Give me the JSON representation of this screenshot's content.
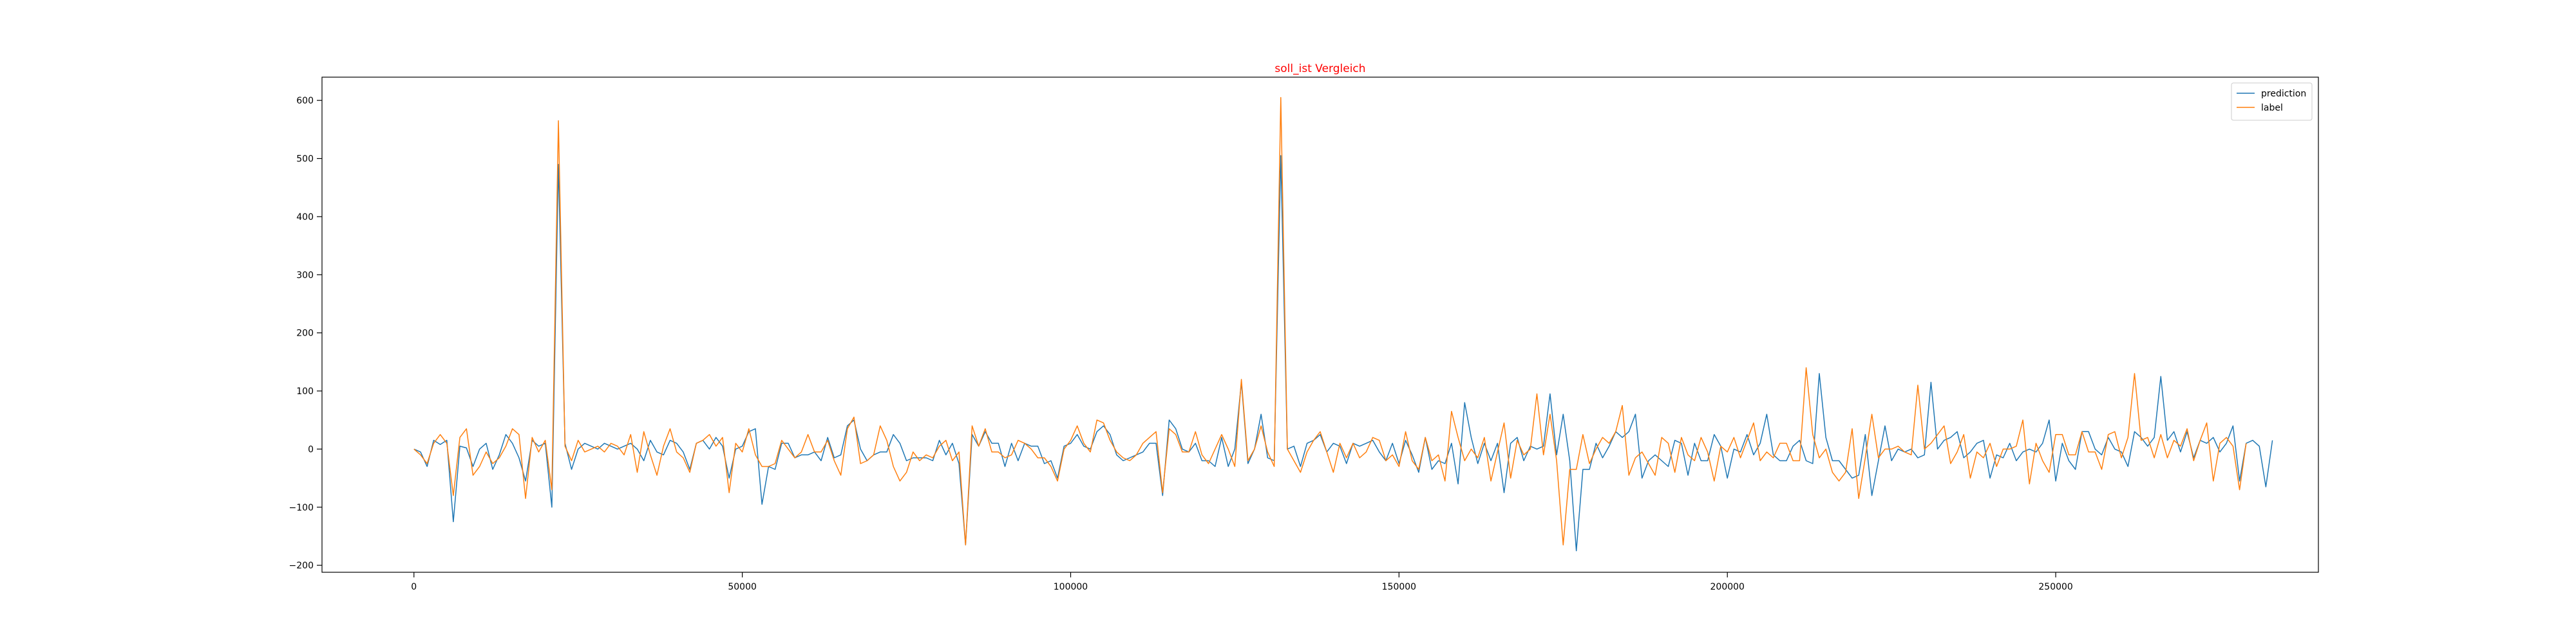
{
  "chart_data": {
    "type": "line",
    "title": "soll_ist Vergleich",
    "title_color": "#ff0000",
    "xlabel": "",
    "ylabel": "",
    "xlim": [
      -14000,
      290000
    ],
    "ylim": [
      -212,
      640
    ],
    "x_ticks": [
      0,
      50000,
      100000,
      150000,
      200000,
      250000
    ],
    "y_ticks": [
      -200,
      -100,
      0,
      100,
      200,
      300,
      400,
      500,
      600
    ],
    "grid": false,
    "legend_position": "top-right",
    "x_step": 1000,
    "series": [
      {
        "name": "prediction",
        "color": "#1f77b4",
        "values": [
          0,
          -5,
          -30,
          15,
          8,
          15,
          -125,
          5,
          2,
          -30,
          0,
          10,
          -35,
          -10,
          25,
          10,
          -15,
          -55,
          15,
          5,
          10,
          -100,
          490,
          10,
          -35,
          0,
          10,
          5,
          0,
          10,
          5,
          0,
          5,
          10,
          0,
          -20,
          15,
          -5,
          -10,
          15,
          10,
          -5,
          -35,
          10,
          15,
          0,
          20,
          5,
          -50,
          0,
          5,
          30,
          35,
          -95,
          -30,
          -35,
          10,
          10,
          -15,
          -10,
          -10,
          -5,
          -20,
          20,
          -15,
          -10,
          40,
          50,
          0,
          -20,
          -10,
          -5,
          -5,
          25,
          10,
          -20,
          -15,
          -15,
          -15,
          -20,
          15,
          -10,
          10,
          -25,
          -165,
          25,
          5,
          30,
          10,
          10,
          -30,
          10,
          -20,
          10,
          5,
          5,
          -25,
          -20,
          -50,
          5,
          10,
          25,
          5,
          0,
          30,
          40,
          25,
          -10,
          -20,
          -15,
          -10,
          -5,
          10,
          10,
          -80,
          50,
          35,
          0,
          -5,
          10,
          -20,
          -20,
          -30,
          20,
          -30,
          0,
          115,
          -25,
          0,
          60,
          -15,
          -20,
          505,
          0,
          5,
          -30,
          10,
          15,
          25,
          -5,
          10,
          5,
          -25,
          10,
          5,
          10,
          15,
          -5,
          -20,
          10,
          -25,
          15,
          -10,
          -40,
          20,
          -35,
          -20,
          -25,
          10,
          -60,
          80,
          20,
          -25,
          10,
          -20,
          10,
          -75,
          10,
          20,
          -20,
          5,
          0,
          5,
          95,
          -10,
          60,
          -20,
          -175,
          -35,
          -35,
          10,
          -15,
          5,
          30,
          20,
          30,
          60,
          -50,
          -20,
          -10,
          -20,
          -30,
          15,
          10,
          -45,
          10,
          -20,
          -20,
          25,
          5,
          -50,
          0,
          -5,
          25,
          -10,
          10,
          60,
          -10,
          -20,
          -20,
          5,
          15,
          -20,
          -25,
          130,
          20,
          -20,
          -20,
          -35,
          -50,
          -45,
          25,
          -80,
          -20,
          40,
          -20,
          0,
          -5,
          0,
          -15,
          -10,
          115,
          0,
          15,
          20,
          30,
          -15,
          -5,
          10,
          15,
          -50,
          -10,
          -15,
          10,
          -20,
          -5,
          0,
          -5,
          10,
          50,
          -55,
          10,
          -20,
          -35,
          30,
          30,
          0,
          -10,
          20,
          0,
          -5,
          -30,
          30,
          20,
          5,
          20,
          125,
          15,
          30,
          -5,
          30,
          -15,
          15,
          10,
          20,
          -5,
          10,
          40,
          -55,
          10,
          15,
          5,
          -65,
          15
        ]
      },
      {
        "name": "label",
        "color": "#ff7f0e",
        "values": [
          0,
          -10,
          -25,
          10,
          25,
          10,
          -80,
          20,
          35,
          -45,
          -30,
          -5,
          -25,
          -15,
          5,
          35,
          25,
          -85,
          20,
          -5,
          15,
          -70,
          565,
          5,
          -20,
          15,
          -5,
          0,
          5,
          -5,
          10,
          5,
          -10,
          25,
          -40,
          30,
          -10,
          -45,
          5,
          35,
          -5,
          -15,
          -40,
          10,
          15,
          25,
          5,
          20,
          -75,
          10,
          -5,
          35,
          -10,
          -30,
          -30,
          -25,
          15,
          0,
          -15,
          -5,
          25,
          -5,
          -5,
          15,
          -20,
          -45,
          35,
          55,
          -25,
          -20,
          -10,
          40,
          15,
          -30,
          -55,
          -40,
          -5,
          -20,
          -10,
          -15,
          5,
          15,
          -20,
          -5,
          -165,
          40,
          5,
          35,
          -5,
          -5,
          -15,
          -10,
          15,
          10,
          0,
          -15,
          -15,
          -30,
          -55,
          0,
          15,
          40,
          10,
          -5,
          50,
          45,
          15,
          -5,
          -15,
          -20,
          -10,
          10,
          20,
          30,
          -75,
          35,
          25,
          -5,
          -5,
          30,
          -10,
          -25,
          0,
          25,
          0,
          -30,
          120,
          -20,
          0,
          40,
          -5,
          -30,
          605,
          0,
          -20,
          -40,
          -5,
          15,
          30,
          -5,
          -40,
          10,
          -15,
          10,
          -15,
          -5,
          20,
          15,
          -20,
          -10,
          -30,
          30,
          -20,
          -35,
          20,
          -20,
          -10,
          -55,
          65,
          20,
          -20,
          0,
          -15,
          20,
          -55,
          -5,
          45,
          -50,
          15,
          -10,
          0,
          95,
          -10,
          60,
          -20,
          -165,
          -35,
          -35,
          25,
          -25,
          0,
          20,
          10,
          30,
          75,
          -45,
          -15,
          -5,
          -25,
          -45,
          20,
          10,
          -40,
          20,
          -10,
          -20,
          20,
          -5,
          -55,
          5,
          -5,
          20,
          -15,
          15,
          45,
          -20,
          -5,
          -15,
          10,
          10,
          -20,
          -20,
          140,
          25,
          -15,
          0,
          -40,
          -55,
          -40,
          35,
          -85,
          -15,
          60,
          -15,
          0,
          0,
          5,
          -5,
          -10,
          110,
          0,
          10,
          25,
          40,
          -25,
          -5,
          25,
          -50,
          -5,
          -15,
          10,
          -30,
          0,
          0,
          5,
          50,
          -60,
          10,
          -20,
          -40,
          25,
          25,
          -10,
          -10,
          30,
          -5,
          -5,
          -35,
          25,
          30,
          -15,
          20,
          130,
          15,
          20,
          -15,
          25,
          -15,
          15,
          5,
          35,
          -20,
          15,
          45,
          -55,
          10,
          20,
          5,
          -70,
          10
        ]
      }
    ]
  }
}
